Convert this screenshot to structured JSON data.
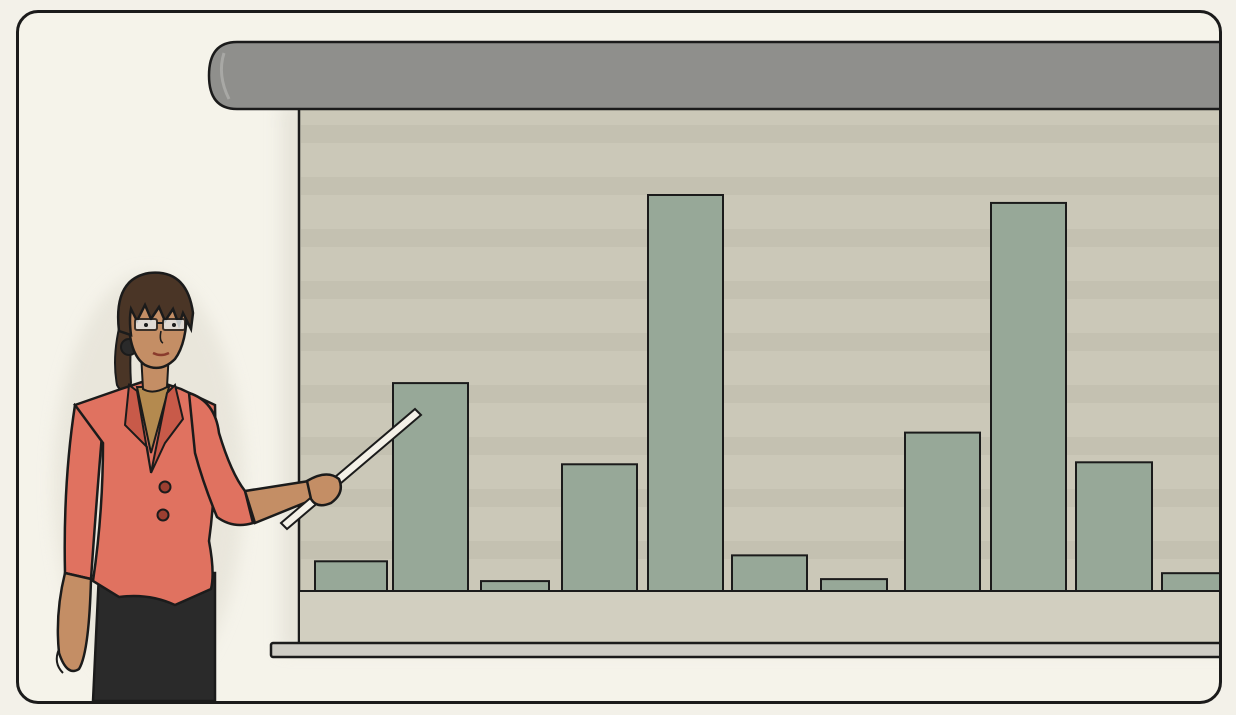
{
  "scene": {
    "colors": {
      "page_bg": "#f5f3ea",
      "screen_roller": "#8f8f8c",
      "screen_surface": "#cbc8b8",
      "screen_stripe": "#bdb9a8",
      "screen_base_band": "#d2cfc0",
      "bar_fill": "#97a898",
      "outline": "#1b1b1b",
      "jacket": "#e07260",
      "jacket_shadow": "#c85a49",
      "skirt": "#2a2a2a",
      "skin": "#c48e65",
      "hair": "#4a3526",
      "blouse": "#b48a4f",
      "pointer": "#f4f1e8"
    },
    "bar_levels": [
      0.075,
      0.525,
      0.025,
      0.32,
      1.0,
      0.09,
      0.03,
      0.4,
      0.98,
      0.325,
      0.045
    ]
  }
}
